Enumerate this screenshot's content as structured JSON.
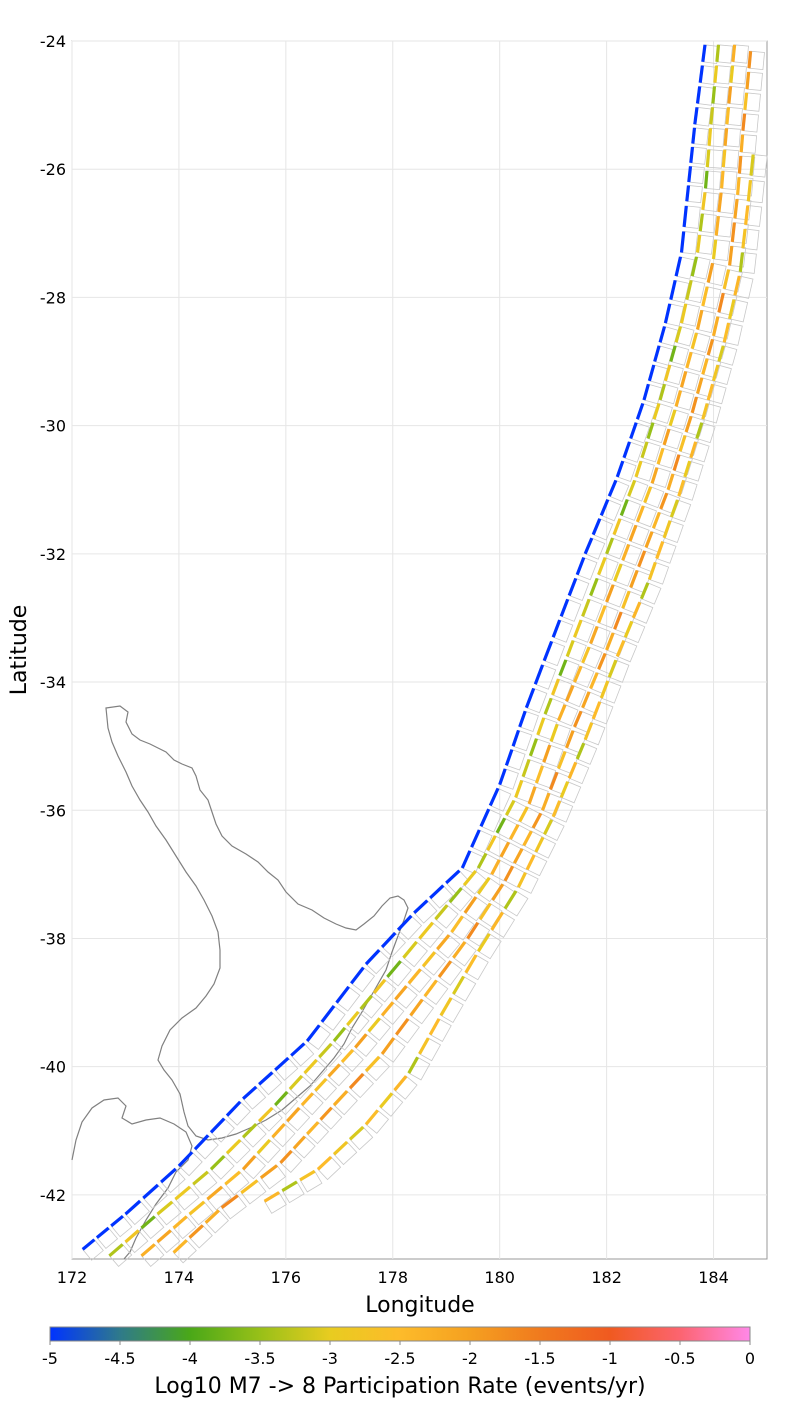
{
  "chart_data": {
    "type": "scatter",
    "title": "",
    "xlabel": "Longitude",
    "ylabel": "Latitude",
    "xlim": [
      172,
      185
    ],
    "ylim": [
      -43,
      -24
    ],
    "x_ticks": [
      "172",
      "174",
      "176",
      "178",
      "180",
      "182",
      "184"
    ],
    "y_ticks": [
      "-24",
      "-26",
      "-28",
      "-30",
      "-32",
      "-34",
      "-36",
      "-38",
      "-40",
      "-42"
    ],
    "grid": true,
    "colorbar": {
      "label": "Log10 M7 -> 8 Participation Rate (events/yr)",
      "min": -5,
      "max": 0,
      "ticks": [
        "-5",
        "-4.5",
        "-4",
        "-3.5",
        "-3",
        "-2.5",
        "-2",
        "-1.5",
        "-1",
        "-0.5",
        "0"
      ],
      "colors": [
        "#0033ff",
        "#2f7a8a",
        "#4aa818",
        "#98c018",
        "#e8cc20",
        "#fdbb2a",
        "#f5a020",
        "#f07a1e",
        "#f05a20",
        "#fc6470",
        "#ff88e8"
      ]
    },
    "fault_columns": [
      {
        "name": "trench",
        "value": -5,
        "points": [
          [
            172.2,
            -42.85
          ],
          [
            173.0,
            -42.3
          ],
          [
            174.0,
            -41.55
          ],
          [
            175.2,
            -40.5
          ],
          [
            176.4,
            -39.6
          ],
          [
            177.5,
            -38.4
          ],
          [
            178.4,
            -37.6
          ],
          [
            179.3,
            -36.9
          ],
          [
            180.0,
            -35.6
          ],
          [
            180.5,
            -34.4
          ],
          [
            181.0,
            -33.3
          ],
          [
            181.6,
            -32.0
          ],
          [
            182.2,
            -30.8
          ],
          [
            182.7,
            -29.6
          ],
          [
            183.1,
            -28.4
          ],
          [
            183.4,
            -27.3
          ],
          [
            183.5,
            -26.5
          ],
          [
            183.65,
            -25.3
          ],
          [
            183.85,
            -24.0
          ]
        ]
      },
      {
        "name": "row1",
        "value": -3.2,
        "points": [
          [
            172.7,
            -42.95
          ],
          [
            173.6,
            -42.3
          ],
          [
            174.6,
            -41.6
          ],
          [
            175.8,
            -40.6
          ],
          [
            176.9,
            -39.6
          ],
          [
            177.9,
            -38.6
          ],
          [
            178.8,
            -37.7
          ],
          [
            179.6,
            -36.9
          ],
          [
            180.3,
            -35.8
          ],
          [
            180.85,
            -34.5
          ],
          [
            181.4,
            -33.3
          ],
          [
            182.0,
            -32.0
          ],
          [
            182.55,
            -30.8
          ],
          [
            183.0,
            -29.6
          ],
          [
            183.4,
            -28.4
          ],
          [
            183.7,
            -27.3
          ],
          [
            183.85,
            -26.3
          ],
          [
            183.95,
            -25.3
          ],
          [
            184.1,
            -24.0
          ]
        ]
      },
      {
        "name": "row2",
        "value": -2.4,
        "points": [
          [
            173.3,
            -42.95
          ],
          [
            174.2,
            -42.3
          ],
          [
            175.2,
            -41.6
          ],
          [
            176.3,
            -40.6
          ],
          [
            177.3,
            -39.7
          ],
          [
            178.3,
            -38.7
          ],
          [
            179.1,
            -37.9
          ],
          [
            179.85,
            -37.0
          ],
          [
            180.55,
            -35.9
          ],
          [
            181.1,
            -34.6
          ],
          [
            181.7,
            -33.4
          ],
          [
            182.3,
            -32.1
          ],
          [
            182.85,
            -30.9
          ],
          [
            183.3,
            -29.7
          ],
          [
            183.7,
            -28.5
          ],
          [
            184.0,
            -27.4
          ],
          [
            184.15,
            -26.3
          ],
          [
            184.25,
            -25.3
          ],
          [
            184.4,
            -24.0
          ]
        ]
      },
      {
        "name": "row3",
        "value": -2.1,
        "points": [
          [
            173.9,
            -42.9
          ],
          [
            174.8,
            -42.2
          ],
          [
            175.9,
            -41.5
          ],
          [
            176.9,
            -40.6
          ],
          [
            177.8,
            -39.8
          ],
          [
            178.6,
            -38.9
          ],
          [
            179.4,
            -38.0
          ],
          [
            180.1,
            -37.1
          ],
          [
            180.8,
            -36.0
          ],
          [
            181.4,
            -34.7
          ],
          [
            182.0,
            -33.5
          ],
          [
            182.6,
            -32.2
          ],
          [
            183.15,
            -31.0
          ],
          [
            183.6,
            -29.8
          ],
          [
            184.0,
            -28.6
          ],
          [
            184.3,
            -27.5
          ],
          [
            184.45,
            -26.4
          ],
          [
            184.55,
            -25.4
          ],
          [
            184.7,
            -24.1
          ]
        ]
      },
      {
        "name": "row4",
        "value": -2.8,
        "points": [
          [
            175.6,
            -42.1
          ],
          [
            176.6,
            -41.6
          ],
          [
            177.5,
            -40.9
          ],
          [
            178.3,
            -40.1
          ],
          [
            178.9,
            -39.2
          ],
          [
            179.6,
            -38.2
          ],
          [
            180.35,
            -37.2
          ],
          [
            181.0,
            -36.1
          ],
          [
            181.6,
            -34.9
          ],
          [
            182.2,
            -33.6
          ],
          [
            182.8,
            -32.4
          ],
          [
            183.35,
            -31.1
          ],
          [
            183.8,
            -29.9
          ],
          [
            184.2,
            -28.7
          ],
          [
            184.5,
            -27.6
          ],
          [
            184.65,
            -26.5
          ],
          [
            184.75,
            -25.7
          ]
        ]
      }
    ]
  }
}
